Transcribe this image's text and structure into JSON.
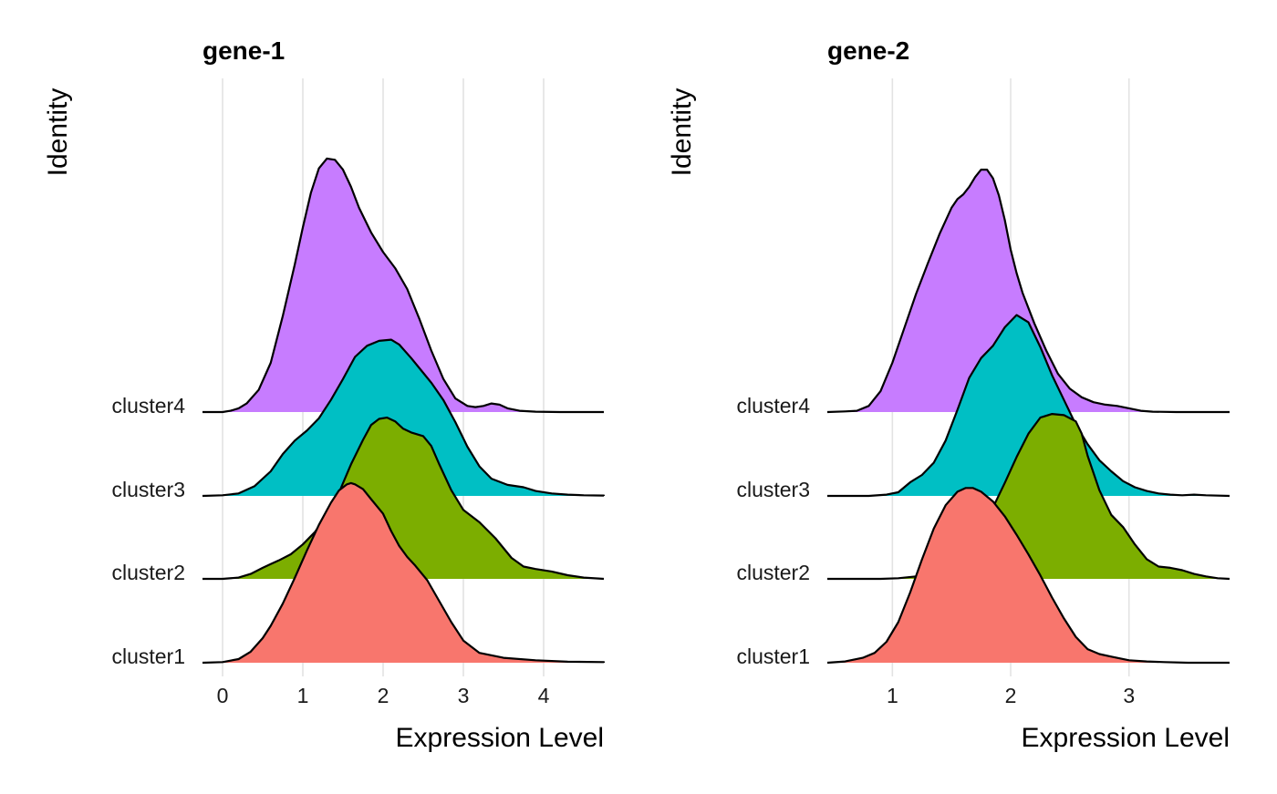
{
  "chart_data": [
    {
      "type": "ridgeline",
      "title": "gene-1",
      "xlabel": "Expression Level",
      "ylabel": "Identity",
      "xlim": [
        -0.25,
        4.75
      ],
      "xticks": [
        0,
        1,
        2,
        3,
        4
      ],
      "grid": "vertical",
      "categories": [
        "cluster1",
        "cluster2",
        "cluster3",
        "cluster4"
      ],
      "series": [
        {
          "name": "cluster1",
          "color": "#F8766D",
          "x": [
            -0.25,
            0.0,
            0.2,
            0.35,
            0.5,
            0.6,
            0.75,
            0.9,
            1.05,
            1.2,
            1.35,
            1.45,
            1.55,
            1.6,
            1.65,
            1.75,
            1.85,
            2.0,
            2.1,
            2.2,
            2.3,
            2.4,
            2.55,
            2.7,
            2.85,
            3.0,
            3.2,
            3.5,
            3.9,
            4.3,
            4.75
          ],
          "y": [
            0.0,
            0.005,
            0.03,
            0.09,
            0.2,
            0.3,
            0.48,
            0.69,
            0.91,
            1.12,
            1.3,
            1.4,
            1.45,
            1.46,
            1.45,
            1.41,
            1.33,
            1.21,
            1.07,
            0.95,
            0.86,
            0.79,
            0.67,
            0.5,
            0.33,
            0.18,
            0.08,
            0.04,
            0.02,
            0.008,
            0.005
          ]
        },
        {
          "name": "cluster2",
          "color": "#7CAE00",
          "x": [
            0.0,
            0.2,
            0.35,
            0.5,
            0.6,
            0.7,
            0.85,
            1.0,
            1.15,
            1.3,
            1.45,
            1.6,
            1.75,
            1.85,
            1.95,
            2.05,
            2.15,
            2.25,
            2.35,
            2.5,
            2.6,
            2.7,
            2.85,
            3.0,
            3.2,
            3.4,
            3.6,
            3.75,
            3.9,
            4.1,
            4.3,
            4.5,
            4.75
          ],
          "y": [
            0.0,
            0.01,
            0.04,
            0.09,
            0.12,
            0.15,
            0.2,
            0.28,
            0.38,
            0.52,
            0.7,
            0.93,
            1.13,
            1.25,
            1.3,
            1.31,
            1.28,
            1.22,
            1.19,
            1.16,
            1.08,
            0.93,
            0.72,
            0.56,
            0.46,
            0.33,
            0.17,
            0.1,
            0.08,
            0.06,
            0.03,
            0.01,
            0.0
          ]
        },
        {
          "name": "cluster3",
          "color": "#00BFC4",
          "x": [
            -0.25,
            0.0,
            0.2,
            0.4,
            0.6,
            0.75,
            0.9,
            1.05,
            1.2,
            1.35,
            1.5,
            1.65,
            1.8,
            1.95,
            2.1,
            2.2,
            2.35,
            2.5,
            2.6,
            2.75,
            2.9,
            3.05,
            3.2,
            3.35,
            3.55,
            3.75,
            3.9,
            4.1,
            4.3,
            4.5,
            4.75
          ],
          "y": [
            0.0,
            0.005,
            0.02,
            0.08,
            0.2,
            0.34,
            0.45,
            0.53,
            0.63,
            0.78,
            0.95,
            1.13,
            1.22,
            1.26,
            1.27,
            1.23,
            1.12,
            1.0,
            0.92,
            0.78,
            0.6,
            0.4,
            0.24,
            0.14,
            0.09,
            0.07,
            0.04,
            0.02,
            0.01,
            0.005,
            0.003
          ]
        },
        {
          "name": "cluster4",
          "color": "#C77CFF",
          "x": [
            0.0,
            0.1,
            0.2,
            0.3,
            0.45,
            0.6,
            0.75,
            0.9,
            1.0,
            1.1,
            1.2,
            1.3,
            1.4,
            1.5,
            1.6,
            1.7,
            1.85,
            2.0,
            2.15,
            2.3,
            2.45,
            2.6,
            2.75,
            2.9,
            3.05,
            3.15,
            3.25,
            3.35,
            3.45,
            3.55,
            3.7,
            3.9,
            4.2,
            4.5,
            4.75
          ],
          "y": [
            0.0,
            0.01,
            0.03,
            0.07,
            0.18,
            0.4,
            0.78,
            1.2,
            1.5,
            1.78,
            1.98,
            2.06,
            2.05,
            1.97,
            1.83,
            1.66,
            1.46,
            1.3,
            1.17,
            1.0,
            0.76,
            0.5,
            0.27,
            0.11,
            0.05,
            0.04,
            0.05,
            0.07,
            0.06,
            0.03,
            0.01,
            0.003,
            0.0,
            0.0,
            0.0
          ]
        }
      ]
    },
    {
      "type": "ridgeline",
      "title": "gene-2",
      "xlabel": "Expression Level",
      "ylabel": "Identity",
      "xlim": [
        0.45,
        3.85
      ],
      "xticks": [
        1,
        2,
        3
      ],
      "grid": "vertical",
      "categories": [
        "cluster1",
        "cluster2",
        "cluster3",
        "cluster4"
      ],
      "series": [
        {
          "name": "cluster1",
          "color": "#F8766D",
          "x": [
            0.45,
            0.6,
            0.75,
            0.85,
            0.95,
            1.05,
            1.15,
            1.25,
            1.35,
            1.45,
            1.55,
            1.62,
            1.68,
            1.75,
            1.85,
            1.95,
            2.05,
            2.15,
            2.25,
            2.35,
            2.45,
            2.55,
            2.65,
            2.75,
            2.85,
            3.0,
            3.15,
            3.3,
            3.5,
            3.7,
            3.85
          ],
          "y": [
            0.0,
            0.01,
            0.04,
            0.08,
            0.17,
            0.33,
            0.57,
            0.84,
            1.09,
            1.28,
            1.39,
            1.42,
            1.42,
            1.39,
            1.31,
            1.19,
            1.04,
            0.88,
            0.71,
            0.53,
            0.36,
            0.21,
            0.11,
            0.07,
            0.05,
            0.02,
            0.01,
            0.005,
            0.0,
            0.0,
            0.0
          ]
        },
        {
          "name": "cluster2",
          "color": "#7CAE00",
          "x": [
            0.45,
            0.7,
            0.9,
            1.05,
            1.2,
            1.35,
            1.5,
            1.65,
            1.75,
            1.85,
            1.95,
            2.05,
            2.15,
            2.25,
            2.35,
            2.45,
            2.55,
            2.6,
            2.65,
            2.75,
            2.85,
            2.95,
            3.05,
            3.15,
            3.25,
            3.35,
            3.45,
            3.55,
            3.65,
            3.75,
            3.85
          ],
          "y": [
            0.0,
            0.0,
            0.0,
            0.005,
            0.02,
            0.05,
            0.12,
            0.27,
            0.42,
            0.58,
            0.78,
            0.99,
            1.18,
            1.31,
            1.34,
            1.33,
            1.28,
            1.18,
            1.0,
            0.72,
            0.52,
            0.42,
            0.28,
            0.16,
            0.1,
            0.09,
            0.07,
            0.04,
            0.02,
            0.005,
            0.0
          ]
        },
        {
          "name": "cluster3",
          "color": "#00BFC4",
          "x": [
            0.45,
            0.6,
            0.8,
            0.95,
            1.05,
            1.15,
            1.25,
            1.35,
            1.45,
            1.55,
            1.65,
            1.75,
            1.85,
            1.95,
            2.05,
            2.15,
            2.25,
            2.35,
            2.45,
            2.55,
            2.65,
            2.75,
            2.85,
            2.95,
            3.05,
            3.15,
            3.25,
            3.35,
            3.45,
            3.55,
            3.65,
            3.85
          ],
          "y": [
            0.0,
            0.0,
            0.0,
            0.01,
            0.03,
            0.11,
            0.17,
            0.27,
            0.45,
            0.7,
            0.96,
            1.12,
            1.22,
            1.37,
            1.47,
            1.41,
            1.21,
            0.98,
            0.78,
            0.58,
            0.42,
            0.29,
            0.2,
            0.12,
            0.07,
            0.04,
            0.02,
            0.01,
            0.005,
            0.01,
            0.005,
            0.0
          ]
        },
        {
          "name": "cluster4",
          "color": "#C77CFF",
          "x": [
            0.45,
            0.6,
            0.7,
            0.8,
            0.9,
            1.0,
            1.1,
            1.2,
            1.3,
            1.4,
            1.5,
            1.55,
            1.6,
            1.65,
            1.7,
            1.75,
            1.8,
            1.85,
            1.9,
            1.95,
            2.0,
            2.05,
            2.1,
            2.2,
            2.3,
            2.4,
            2.5,
            2.6,
            2.7,
            2.8,
            2.9,
            3.0,
            3.1,
            3.2,
            3.4,
            3.6,
            3.85
          ],
          "y": [
            0.0,
            0.005,
            0.01,
            0.05,
            0.17,
            0.4,
            0.68,
            0.96,
            1.21,
            1.45,
            1.66,
            1.73,
            1.77,
            1.83,
            1.91,
            1.97,
            1.97,
            1.9,
            1.76,
            1.56,
            1.32,
            1.13,
            0.97,
            0.72,
            0.5,
            0.31,
            0.19,
            0.12,
            0.08,
            0.06,
            0.05,
            0.03,
            0.01,
            0.003,
            0.0,
            0.0,
            0.0
          ]
        }
      ]
    }
  ]
}
